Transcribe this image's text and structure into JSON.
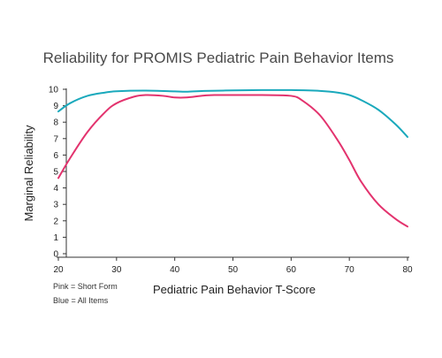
{
  "chart_data": {
    "type": "line",
    "title": "Reliability for PROMIS Pediatric Pain Behavior Items",
    "xlabel": "Pediatric Pain Behavior T-Score",
    "ylabel": "Marginal Reliability",
    "xlim": [
      20,
      80
    ],
    "ylim": [
      0,
      10
    ],
    "xticks": [
      "20",
      "30",
      "40",
      "50",
      "60",
      "70",
      "80"
    ],
    "yticks": [
      "0",
      "1",
      "2",
      "3",
      "4",
      "5",
      "6",
      "7",
      "8",
      "9",
      "10"
    ],
    "grid": false,
    "notes": [
      "Pink = Short Form",
      "Blue = All Items"
    ],
    "series": [
      {
        "name": "All Items",
        "color": "#1aa9bc",
        "x": [
          20,
          22,
          25,
          28,
          30,
          35,
          40,
          42,
          45,
          50,
          55,
          60,
          65,
          68,
          70,
          72,
          75,
          78,
          80
        ],
        "y": [
          8.65,
          9.15,
          9.6,
          9.8,
          9.88,
          9.92,
          9.87,
          9.85,
          9.9,
          9.93,
          9.95,
          9.95,
          9.9,
          9.8,
          9.65,
          9.35,
          8.75,
          7.85,
          7.1
        ]
      },
      {
        "name": "Short Form",
        "color": "#e3336e",
        "x": [
          20,
          22,
          25,
          28,
          30,
          33,
          35,
          38,
          40,
          42,
          45,
          47,
          50,
          55,
          60,
          62,
          65,
          68,
          70,
          72,
          75,
          78,
          80
        ],
        "y": [
          4.6,
          5.8,
          7.4,
          8.6,
          9.15,
          9.55,
          9.65,
          9.6,
          9.5,
          9.5,
          9.62,
          9.65,
          9.65,
          9.65,
          9.6,
          9.3,
          8.4,
          6.9,
          5.7,
          4.4,
          3.0,
          2.1,
          1.65
        ]
      }
    ]
  }
}
